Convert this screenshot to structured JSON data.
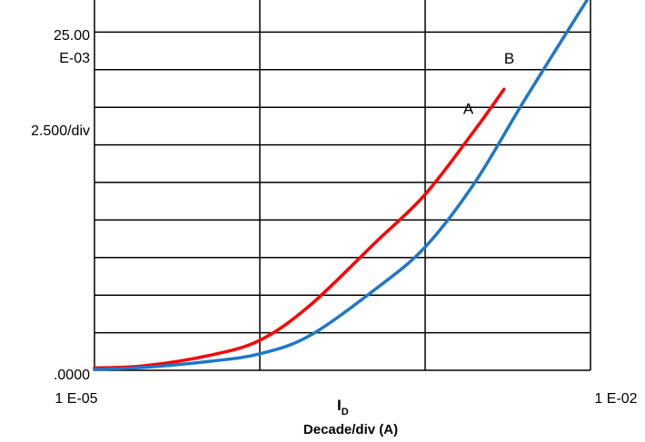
{
  "chart_data": {
    "type": "line",
    "x_scale": "log",
    "xlim": [
      1e-05,
      0.01
    ],
    "ylim": [
      0,
      25.0
    ],
    "y_unit_multiplier": "E-03",
    "grid": true,
    "y_axis": {
      "top_label_line1": "25.00",
      "top_label_line2": "E-03",
      "division_label": "2.500/div",
      "bottom_label": ".0000"
    },
    "x_axis": {
      "left_label": "1 E-05",
      "right_label": "1 E-02",
      "symbol_main": "I",
      "symbol_sub": "D",
      "unit_label": "Decade/div (A)"
    },
    "series": [
      {
        "name": "A",
        "color": "#ff0000",
        "points": [
          [
            1e-05,
            0.15
          ],
          [
            2e-05,
            0.3
          ],
          [
            5e-05,
            1.0
          ],
          [
            0.0001,
            2.0
          ],
          [
            0.0002,
            4.3
          ],
          [
            0.0005,
            8.5
          ],
          [
            0.001,
            11.7
          ],
          [
            0.002,
            16.0
          ],
          [
            0.003,
            18.7
          ]
        ]
      },
      {
        "name": "B",
        "color": "#1f77c8",
        "points": [
          [
            1e-05,
            0.05
          ],
          [
            2e-05,
            0.2
          ],
          [
            5e-05,
            0.6
          ],
          [
            0.0001,
            1.1
          ],
          [
            0.0002,
            2.3
          ],
          [
            0.0005,
            5.4
          ],
          [
            0.001,
            8.2
          ],
          [
            0.002,
            12.5
          ],
          [
            0.004,
            18.0
          ],
          [
            0.01,
            25.0
          ]
        ]
      }
    ]
  }
}
